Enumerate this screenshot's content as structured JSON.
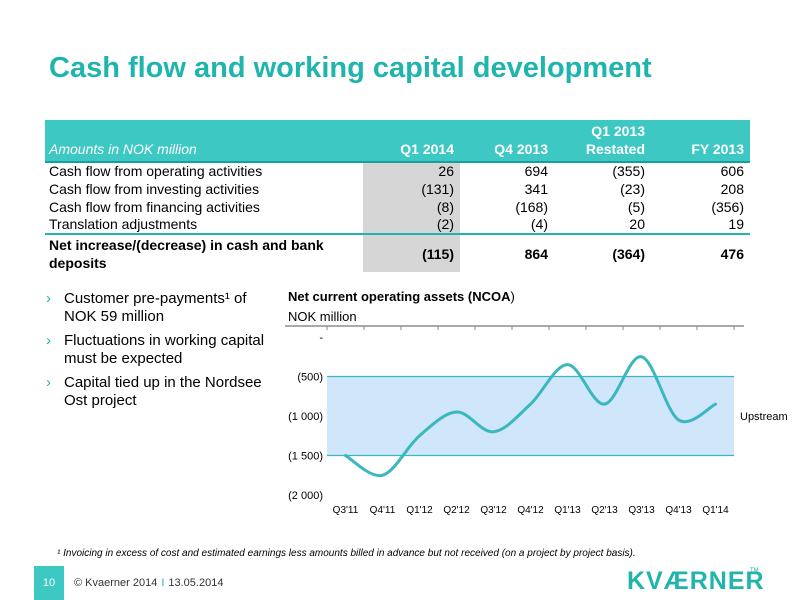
{
  "title": "Cash flow and working capital development",
  "table": {
    "header_label": "Amounts in NOK million",
    "columns": [
      "Q1 2014",
      "Q4 2013",
      "Q1 2013 Restated",
      "FY 2013"
    ],
    "column_lines": [
      [
        "Q1 2014"
      ],
      [
        "Q4 2013"
      ],
      [
        "Q1 2013",
        "Restated"
      ],
      [
        "FY 2013"
      ]
    ],
    "rows": [
      {
        "label": "Cash flow from operating activities",
        "values": [
          "26",
          "694",
          "(355)",
          "606"
        ]
      },
      {
        "label": "Cash flow from investing activities",
        "values": [
          "(131)",
          "341",
          "(23)",
          "208"
        ]
      },
      {
        "label": "Cash flow from financing activities",
        "values": [
          "(8)",
          "(168)",
          "(5)",
          "(356)"
        ]
      },
      {
        "label": "Translation adjustments",
        "values": [
          "(2)",
          "(4)",
          "20",
          "19"
        ]
      }
    ],
    "total": {
      "label": "Net increase/(decrease) in cash and bank deposits",
      "values": [
        "(115)",
        "864",
        "(364)",
        "476"
      ]
    },
    "highlight_color": "#d6d6d6",
    "header_color": "#3dc8c3"
  },
  "bullets": [
    "Customer pre-payments¹ of NOK 59 million",
    "Fluctuations in working capital must be expected",
    "Capital tied up in the Nordsee Ost project"
  ],
  "chart": {
    "title_bold": "Net current operating assets (NCOA",
    "title_rest": ")",
    "subtitle": "NOK million"
  },
  "chart_data": {
    "type": "line",
    "title": "Net current operating assets (NCOA)",
    "ylabel": "NOK million",
    "categories": [
      "Q3'11",
      "Q4'11",
      "Q1'12",
      "Q2'12",
      "Q3'12",
      "Q4'12",
      "Q1'13",
      "Q2'13",
      "Q3'13",
      "Q4'13",
      "Q1'14"
    ],
    "series": [
      {
        "name": "",
        "values": [
          -1500,
          -1750,
          -1250,
          -950,
          -1200,
          -850,
          -350,
          -850,
          -250,
          -1050,
          -850
        ]
      }
    ],
    "ylim": [
      -2000,
      0
    ],
    "yticks": [
      0,
      -500,
      -1000,
      -1500,
      -2000
    ],
    "ytick_labels": [
      "-",
      "(500)",
      "(1 000)",
      "(1 500)",
      "(2 000)"
    ],
    "shaded_band": {
      "label": "Upstream",
      "from": -1500,
      "to": -500,
      "color": "#cfe6fb"
    },
    "line_color": "#3ab7bf",
    "grid": false,
    "annotations": [
      "Upstream"
    ]
  },
  "footnote": "¹ Invoicing in excess of cost and estimated earnings less amounts billed in advance but not received (on a project by project basis).",
  "footer": {
    "page_number": "10",
    "copyright": "© Kvaerner 2014",
    "separator": "I",
    "date": "13.05.2014",
    "logo": "KVÆRNER",
    "trademark": "TM"
  }
}
